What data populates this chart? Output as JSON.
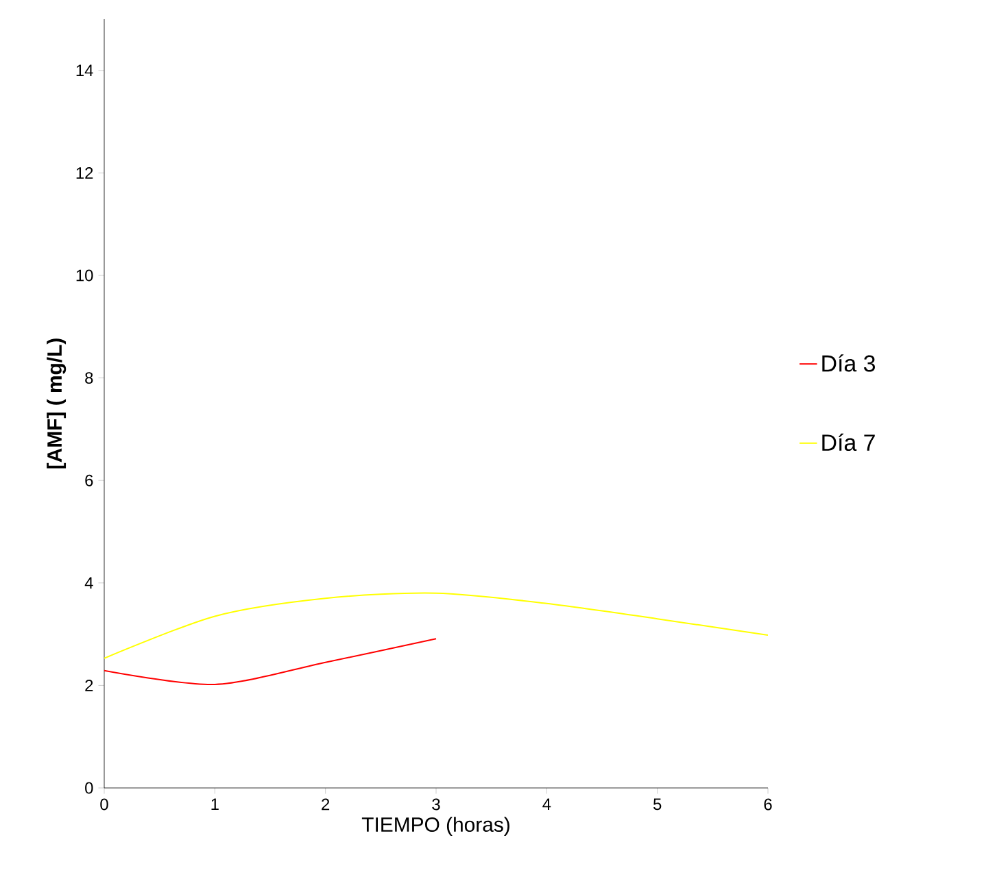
{
  "chart_data": {
    "type": "line",
    "xlabel": "TIEMPO (horas)",
    "ylabel": "[AMF] ( mg/L)",
    "xlim": [
      0,
      6
    ],
    "ylim": [
      0,
      15
    ],
    "xticks": [
      0,
      1,
      2,
      3,
      4,
      5,
      6
    ],
    "yticks": [
      0,
      2,
      4,
      6,
      8,
      10,
      12,
      14
    ],
    "legend": "right",
    "grid": false,
    "marker": "none",
    "series": [
      {
        "name": "Día 3",
        "color": "#ff0000",
        "x": [
          0,
          1,
          2,
          3
        ],
        "values": [
          2.29,
          2.02,
          2.45,
          2.91
        ]
      },
      {
        "name": "Día 7",
        "color": "#ffff00",
        "x": [
          0,
          1,
          2,
          3,
          4,
          5,
          6
        ],
        "values": [
          2.53,
          3.35,
          3.7,
          3.8,
          3.6,
          3.3,
          2.98
        ]
      }
    ]
  }
}
